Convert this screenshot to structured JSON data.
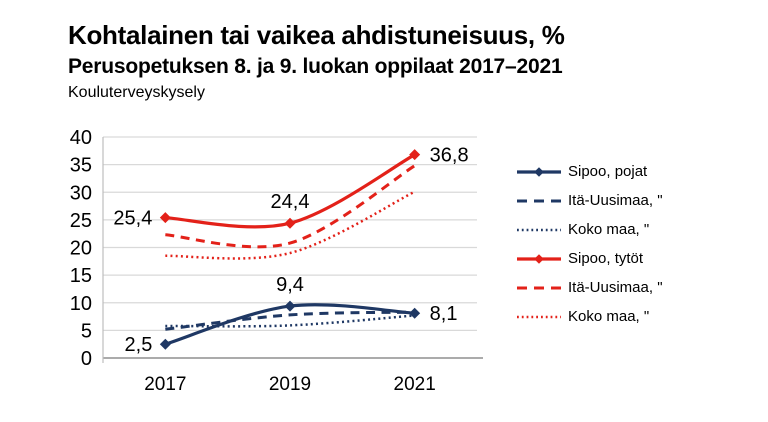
{
  "header": {
    "title": "Kohtalainen tai vaikea ahdistuneisuus, %",
    "subtitle": "Perusopetuksen 8. ja 9. luokan oppilaat 2017–2021",
    "source": "Kouluterveyskysely"
  },
  "colors": {
    "navy": "#1f3864",
    "red": "#e32119",
    "grid": "#d9d9d9",
    "axis": "#8f8f8f",
    "axis_light": "#bdbdbd",
    "text": "#000000"
  },
  "chart_data": {
    "type": "line",
    "categories": [
      "2017",
      "2019",
      "2021"
    ],
    "ylim": [
      0,
      40
    ],
    "yticks": [
      0,
      5,
      10,
      15,
      20,
      25,
      30,
      35,
      40
    ],
    "grid": true,
    "legend_position": "right",
    "series": [
      {
        "key": "sipoo-pojat",
        "name": "Sipoo, pojat",
        "color": "#1f3864",
        "style": "solid",
        "marker": "diamond",
        "values": [
          2.5,
          9.4,
          8.1
        ],
        "point_labels": [
          "2,5",
          "9,4",
          "8,1"
        ],
        "label_positions": [
          "left",
          "above",
          "right"
        ]
      },
      {
        "key": "ita-uusimaa-pojat",
        "name": "Itä-Uusimaa, \"",
        "color": "#1f3864",
        "style": "dashed",
        "values": [
          5.2,
          7.8,
          8.3
        ]
      },
      {
        "key": "koko-maa-pojat",
        "name": "Koko maa, \"",
        "color": "#1f3864",
        "style": "dotted",
        "values": [
          5.8,
          5.9,
          7.7
        ]
      },
      {
        "key": "sipoo-tytot",
        "name": "Sipoo, tytöt",
        "color": "#e32119",
        "style": "solid",
        "marker": "diamond",
        "values": [
          25.4,
          24.4,
          36.8
        ],
        "point_labels": [
          "25,4",
          "24,4",
          "36,8"
        ],
        "label_positions": [
          "left",
          "above",
          "right"
        ]
      },
      {
        "key": "ita-uusimaa-tytot",
        "name": "Itä-Uusimaa, \"",
        "color": "#e32119",
        "style": "dashed",
        "values": [
          22.3,
          20.8,
          34.8
        ]
      },
      {
        "key": "koko-maa-tytot",
        "name": "Koko maa, \"",
        "color": "#e32119",
        "style": "dotted",
        "values": [
          18.5,
          19.0,
          30.1
        ]
      }
    ]
  }
}
